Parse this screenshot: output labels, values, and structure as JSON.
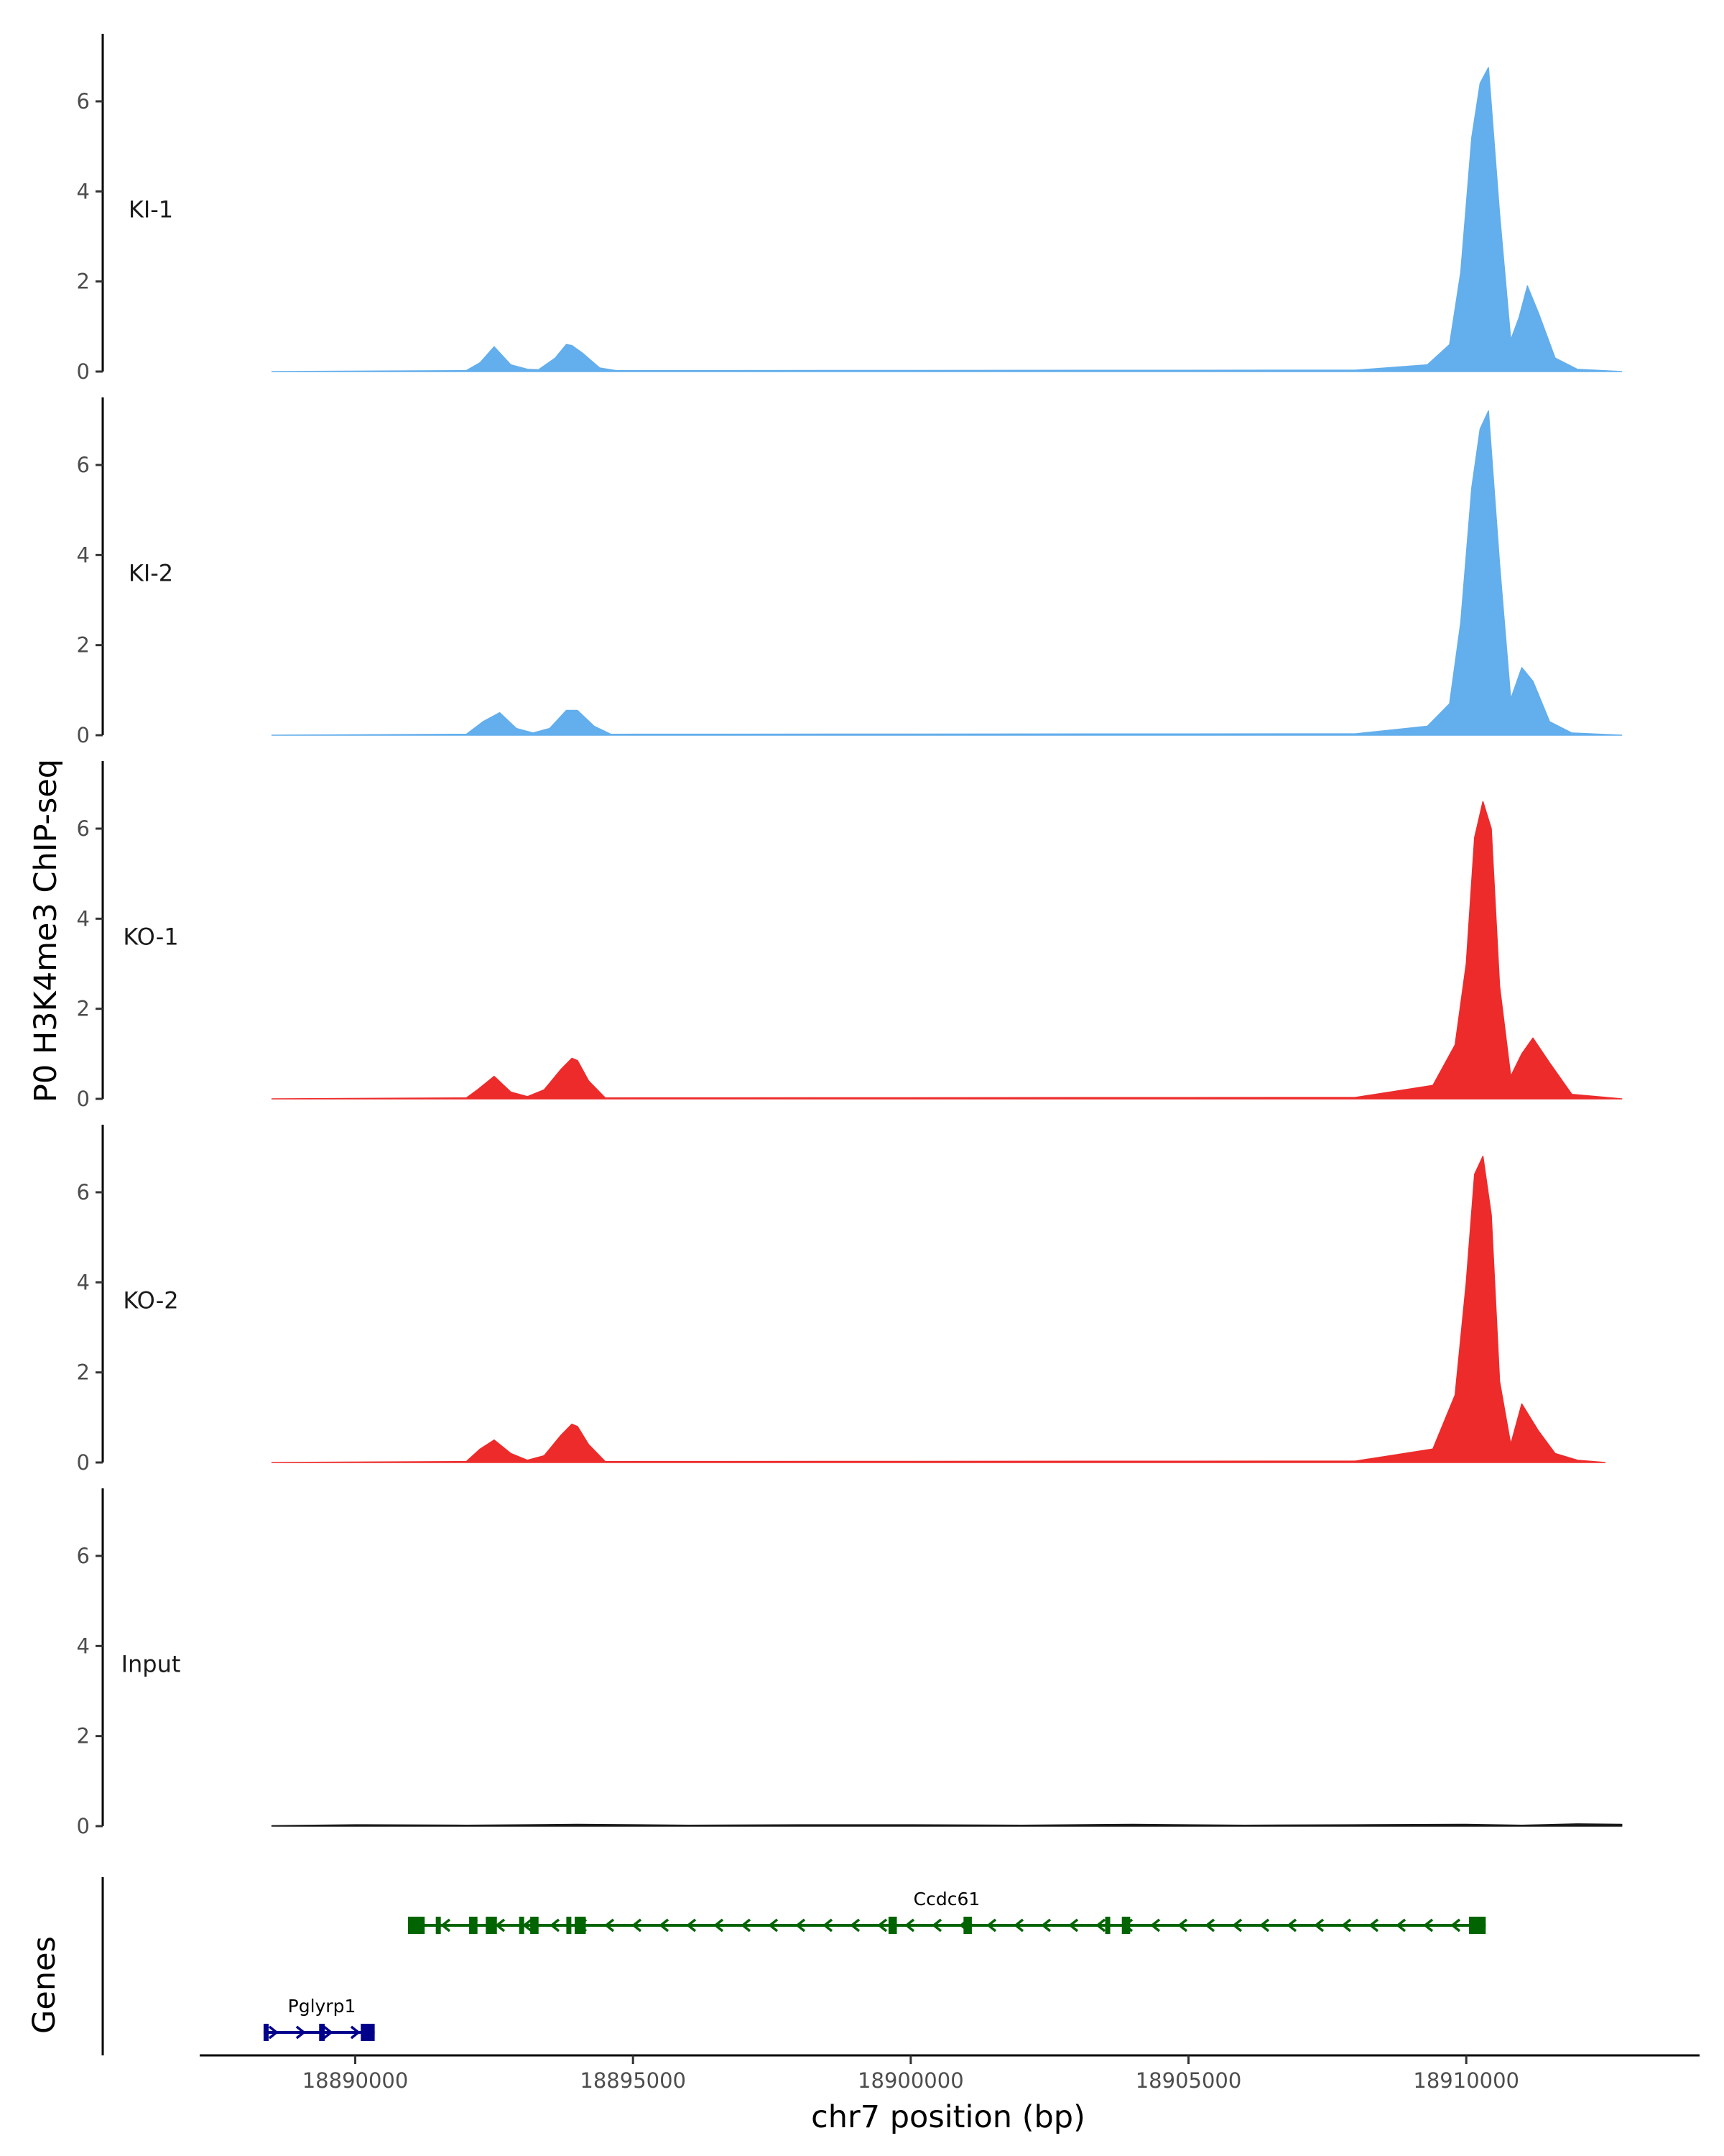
{
  "chart_data": {
    "type": "area",
    "title": "",
    "ylabel": "P0 H3K4me3 ChIP-seq",
    "xlabel": "chr7 position (bp)",
    "ylim": [
      0,
      7.5
    ],
    "xlim": [
      18887200,
      18914200
    ],
    "y_ticks": [
      0,
      2,
      4,
      6
    ],
    "x_ticks": [
      18890000,
      18895000,
      18900000,
      18905000,
      18910000
    ],
    "x_tick_labels": [
      "18890000",
      "18895000",
      "18900000",
      "18905000",
      "18910000"
    ],
    "grid": false,
    "legend": "none",
    "colors": {
      "KI": "#63aeec",
      "KO": "#ed2b2b",
      "Input": "#1a1a1a"
    },
    "series": [
      {
        "name": "KI-1",
        "color": "#63aeec",
        "x": [
          18888500,
          18892000,
          18892250,
          18892500,
          18892800,
          18893100,
          18893300,
          18893600,
          18893800,
          18893900,
          18894100,
          18894400,
          18894700,
          18908000,
          18909300,
          18909700,
          18909900,
          18910100,
          18910250,
          18910400,
          18910600,
          18910800,
          18910950,
          18911100,
          18911300,
          18911600,
          18912000,
          18912800
        ],
        "values": [
          0,
          0.02,
          0.2,
          0.55,
          0.15,
          0.05,
          0.04,
          0.3,
          0.6,
          0.58,
          0.4,
          0.08,
          0.02,
          0.03,
          0.15,
          0.6,
          2.2,
          5.2,
          6.4,
          6.75,
          3.5,
          0.7,
          1.2,
          1.9,
          1.3,
          0.3,
          0.05,
          0
        ],
        "label_y": 3.6
      },
      {
        "name": "KI-2",
        "color": "#63aeec",
        "x": [
          18888500,
          18892000,
          18892300,
          18892600,
          18892900,
          18893200,
          18893500,
          18893800,
          18894000,
          18894300,
          18894600,
          18908000,
          18909300,
          18909700,
          18909900,
          18910100,
          18910250,
          18910400,
          18910600,
          18910800,
          18911000,
          18911200,
          18911500,
          18911900,
          18912800
        ],
        "values": [
          0,
          0.02,
          0.3,
          0.5,
          0.15,
          0.05,
          0.15,
          0.55,
          0.55,
          0.2,
          0.02,
          0.03,
          0.2,
          0.7,
          2.5,
          5.5,
          6.8,
          7.2,
          3.8,
          0.8,
          1.5,
          1.2,
          0.3,
          0.05,
          0
        ],
        "label_y": 3.6
      },
      {
        "name": "KO-1",
        "color": "#ed2b2b",
        "x": [
          18888500,
          18892000,
          18892200,
          18892500,
          18892800,
          18893100,
          18893400,
          18893700,
          18893900,
          18894000,
          18894200,
          18894500,
          18908000,
          18909400,
          18909800,
          18910000,
          18910150,
          18910300,
          18910450,
          18910600,
          18910800,
          18911000,
          18911200,
          18911500,
          18911900,
          18912800
        ],
        "values": [
          0,
          0.02,
          0.2,
          0.5,
          0.15,
          0.05,
          0.2,
          0.65,
          0.9,
          0.85,
          0.4,
          0.02,
          0.03,
          0.3,
          1.2,
          3.0,
          5.8,
          6.6,
          6.0,
          2.5,
          0.5,
          1.0,
          1.35,
          0.8,
          0.1,
          0
        ],
        "label_y": 3.6
      },
      {
        "name": "KO-2",
        "color": "#ed2b2b",
        "x": [
          18888500,
          18892000,
          18892250,
          18892500,
          18892800,
          18893100,
          18893400,
          18893700,
          18893900,
          18894000,
          18894200,
          18894500,
          18908000,
          18909400,
          18909800,
          18910000,
          18910150,
          18910300,
          18910450,
          18910600,
          18910800,
          18911000,
          18911300,
          18911600,
          18912000,
          18912500
        ],
        "values": [
          0,
          0.02,
          0.3,
          0.5,
          0.2,
          0.05,
          0.15,
          0.6,
          0.85,
          0.8,
          0.4,
          0.02,
          0.03,
          0.3,
          1.5,
          4.0,
          6.4,
          6.8,
          5.5,
          1.8,
          0.4,
          1.3,
          0.7,
          0.2,
          0.05,
          0
        ],
        "label_y": 3.6
      },
      {
        "name": "Input",
        "color": "#1a1a1a",
        "x": [
          18888500,
          18890000,
          18892000,
          18894000,
          18896000,
          18898000,
          18900000,
          18902000,
          18904000,
          18906000,
          18908000,
          18910000,
          18911000,
          18912000,
          18912800
        ],
        "values": [
          0.01,
          0.03,
          0.02,
          0.04,
          0.02,
          0.03,
          0.03,
          0.02,
          0.04,
          0.02,
          0.03,
          0.04,
          0.02,
          0.05,
          0.04
        ],
        "label_y": 3.6
      }
    ],
    "genes_track": {
      "label": "Genes",
      "genes": [
        {
          "name": "Pglyrp1",
          "strand": "+",
          "start": 18888350,
          "end": 18890350,
          "color": "#00008b",
          "row": 2,
          "exons": [
            [
              18888350,
              18888380
            ],
            [
              18889350,
              18889450
            ],
            [
              18890100,
              18890350
            ]
          ]
        },
        {
          "name": "Ccdc61",
          "strand": "-",
          "start": 18890950,
          "end": 18910350,
          "color": "#006400",
          "row": 1,
          "exons": [
            [
              18890950,
              18891250
            ],
            [
              18891450,
              18891500
            ],
            [
              18892050,
              18892200
            ],
            [
              18892350,
              18892550
            ],
            [
              18892950,
              18893000
            ],
            [
              18893150,
              18893300
            ],
            [
              18893800,
              18893850
            ],
            [
              18893950,
              18894150
            ],
            [
              18899600,
              18899750
            ],
            [
              18900950,
              18901100
            ],
            [
              18903500,
              18903550
            ],
            [
              18903800,
              18903950
            ],
            [
              18910050,
              18910350
            ]
          ]
        }
      ]
    }
  }
}
